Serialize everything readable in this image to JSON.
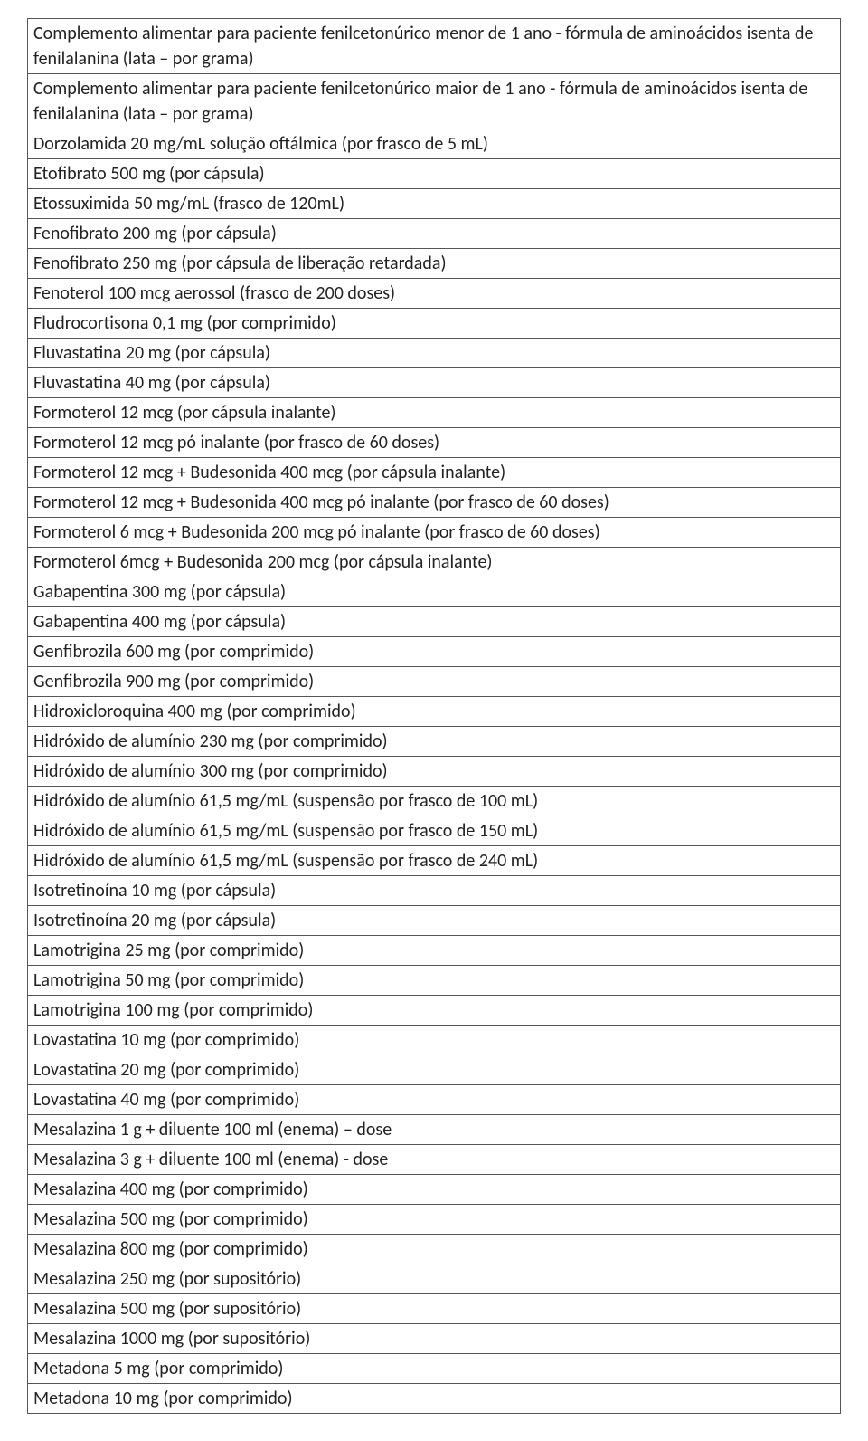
{
  "table": {
    "border_color": "#555555",
    "rows": [
      "Complemento alimentar para paciente fenilcetonúrico menor de 1 ano - fórmula de aminoácidos isenta de fenilalanina (lata – por grama)",
      "Complemento alimentar para paciente fenilcetonúrico maior de 1 ano - fórmula de aminoácidos isenta de fenilalanina (lata – por grama)",
      "Dorzolamida 20 mg/mL solução oftálmica (por frasco de 5 mL)",
      "Etofibrato 500 mg (por cápsula)",
      "Etossuximida 50 mg/mL (frasco de 120mL)",
      "Fenofibrato 200 mg (por cápsula)",
      "Fenofibrato 250 mg (por cápsula de liberação retardada)",
      "Fenoterol 100 mcg aerossol (frasco de 200 doses)",
      "Fludrocortisona 0,1 mg (por comprimido)",
      "Fluvastatina 20 mg (por cápsula)",
      "Fluvastatina 40 mg (por cápsula)",
      "Formoterol 12 mcg (por cápsula inalante)",
      "Formoterol 12 mcg pó inalante (por frasco de 60 doses)",
      "Formoterol 12 mcg + Budesonida 400 mcg (por cápsula inalante)",
      "Formoterol 12 mcg + Budesonida 400 mcg pó inalante (por frasco de 60 doses)",
      "Formoterol 6 mcg + Budesonida 200 mcg pó inalante (por frasco de 60 doses)",
      "Formoterol 6mcg + Budesonida 200 mcg (por cápsula inalante)",
      "Gabapentina 300 mg (por cápsula)",
      "Gabapentina 400 mg (por cápsula)",
      "Genfibrozila 600 mg (por comprimido)",
      "Genfibrozila 900 mg (por comprimido)",
      "Hidroxicloroquina 400 mg (por comprimido)",
      "Hidróxido de alumínio 230 mg (por comprimido)",
      "Hidróxido de alumínio 300 mg (por comprimido)",
      "Hidróxido de alumínio 61,5 mg/mL (suspensão por frasco de 100 mL)",
      "Hidróxido de alumínio 61,5 mg/mL (suspensão por frasco de 150 mL)",
      "Hidróxido de alumínio 61,5 mg/mL (suspensão por frasco de 240 mL)",
      "Isotretinoína 10 mg (por cápsula)",
      "Isotretinoína 20 mg (por cápsula)",
      "Lamotrigina 25 mg (por comprimido)",
      "Lamotrigina 50 mg (por comprimido)",
      "Lamotrigina 100 mg (por comprimido)",
      "Lovastatina 10 mg (por comprimido)",
      "Lovastatina 20 mg (por comprimido)",
      "Lovastatina 40 mg (por comprimido)",
      "Mesalazina 1 g + diluente 100 ml (enema) – dose",
      "Mesalazina 3 g + diluente 100 ml (enema)  - dose",
      "Mesalazina 400 mg (por comprimido)",
      "Mesalazina 500 mg (por comprimido)",
      "Mesalazina 800 mg (por comprimido)",
      "Mesalazina 250 mg (por supositório)",
      "Mesalazina 500 mg (por supositório)",
      "Mesalazina 1000 mg (por supositório)",
      "Metadona 5 mg (por comprimido)",
      "Metadona 10 mg (por comprimido)"
    ]
  }
}
